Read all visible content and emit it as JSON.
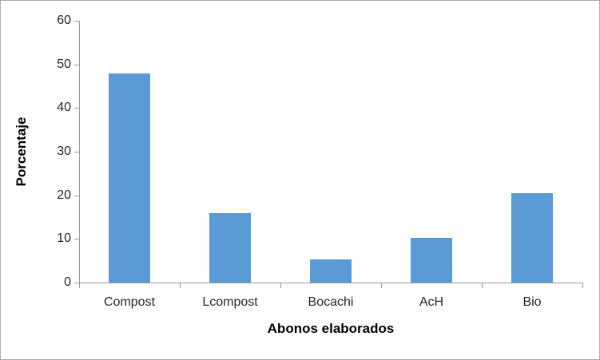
{
  "chart_data": {
    "type": "bar",
    "categories": [
      "Compost",
      "Lcompost",
      "Bocachi",
      "AcH",
      "Bio"
    ],
    "values": [
      48,
      16,
      5.3,
      10.2,
      20.4
    ],
    "title": "",
    "xlabel": "Abonos elaborados",
    "ylabel": "Porcentaje",
    "ylim": [
      0,
      60
    ],
    "yticks": [
      0,
      10,
      20,
      30,
      40,
      50,
      60
    ],
    "grid": false,
    "legend": false,
    "bar_color": "#5B9BD5",
    "axis_color": "#9A9A9A",
    "tick_label_color": "#262626",
    "axis_title_color": "#000000",
    "border_color": "#ABABAB"
  }
}
